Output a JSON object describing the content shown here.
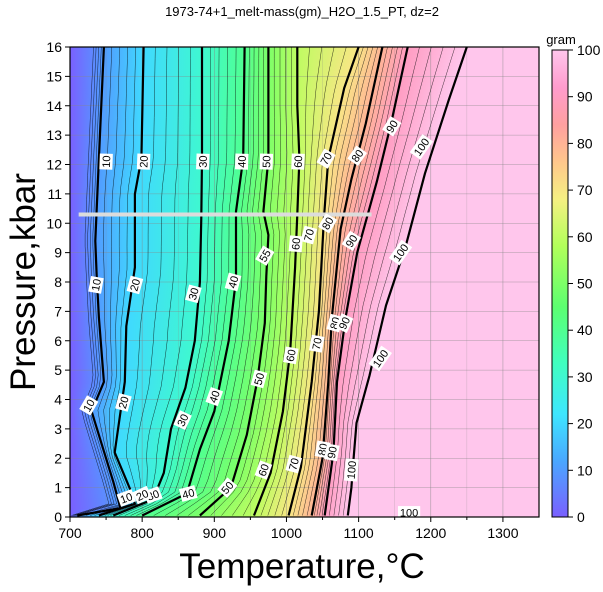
{
  "chart_data": {
    "type": "heatmap",
    "title": "1973-74+1_melt-mass(gm)_H2O_1.5_PT, dz=2",
    "xlabel": "Temperature,°C",
    "ylabel": "Pressure,kbar",
    "xlim": [
      700,
      1350
    ],
    "ylim": [
      0,
      16
    ],
    "x_ticks": [
      700,
      800,
      900,
      1000,
      1100,
      1200,
      1300
    ],
    "y_ticks": [
      0,
      1,
      2,
      3,
      4,
      5,
      6,
      7,
      8,
      9,
      10,
      11,
      12,
      13,
      14,
      15,
      16
    ],
    "colorbar": {
      "label": "gram",
      "range": [
        0,
        100
      ],
      "ticks": [
        0,
        10,
        20,
        30,
        40,
        50,
        60,
        70,
        80,
        90,
        100
      ],
      "colors": [
        {
          "v": 0,
          "c": "#7a60ff"
        },
        {
          "v": 12,
          "c": "#4aa7ff"
        },
        {
          "v": 22,
          "c": "#3ee6ff"
        },
        {
          "v": 33,
          "c": "#40ffbf"
        },
        {
          "v": 45,
          "c": "#5cff70"
        },
        {
          "v": 58,
          "c": "#b2ff5a"
        },
        {
          "v": 68,
          "c": "#f5f082"
        },
        {
          "v": 76,
          "c": "#ffc78c"
        },
        {
          "v": 84,
          "c": "#ffa0a0"
        },
        {
          "v": 92,
          "c": "#ff9ccd"
        },
        {
          "v": 100,
          "c": "#ffc6ec"
        }
      ]
    },
    "grid": true,
    "contour_interval": 2,
    "major_contour_interval": 10,
    "contours": [
      {
        "level": 10,
        "points": [
          [
            710,
            0.05
          ],
          [
            770,
            0.3
          ],
          [
            760,
            1.2
          ],
          [
            730,
            3.6
          ],
          [
            747,
            4.6
          ],
          [
            740,
            6.8
          ],
          [
            737,
            8.2
          ],
          [
            735,
            9.4
          ],
          [
            740,
            12.2
          ],
          [
            747,
            16
          ]
        ]
      },
      {
        "level": 20,
        "points": [
          [
            740,
            0.05
          ],
          [
            790,
            0.45
          ],
          [
            785,
            0.85
          ],
          [
            762,
            2.2
          ],
          [
            776,
            4.6
          ],
          [
            778,
            6.5
          ],
          [
            790,
            8.5
          ],
          [
            790,
            11
          ],
          [
            799,
            12.2
          ],
          [
            802,
            16
          ]
        ]
      },
      {
        "level": 30,
        "points": [
          [
            760,
            0.05
          ],
          [
            815,
            0.6
          ],
          [
            830,
            1.5
          ],
          [
            840,
            3.0
          ],
          [
            860,
            4.4
          ],
          [
            873,
            6.0
          ],
          [
            880,
            8.0
          ],
          [
            882,
            10.2
          ],
          [
            883,
            12.2
          ],
          [
            883,
            16
          ]
        ]
      },
      {
        "level": 40,
        "points": [
          [
            800,
            0.05
          ],
          [
            862,
            0.8
          ],
          [
            880,
            2.3
          ],
          [
            900,
            3.6
          ],
          [
            920,
            6.0
          ],
          [
            930,
            8.1
          ],
          [
            930,
            10.4
          ],
          [
            940,
            12.2
          ],
          [
            942,
            16
          ]
        ]
      },
      {
        "level": 50,
        "points": [
          [
            880,
            0.05
          ],
          [
            923,
            1.0
          ],
          [
            945,
            2.8
          ],
          [
            960,
            4.7
          ],
          [
            970,
            6.6
          ],
          [
            972,
            8.2
          ],
          [
            975,
            9.6
          ],
          [
            968,
            10.4
          ],
          [
            975,
            12.2
          ],
          [
            975,
            16
          ]
        ]
      },
      {
        "level": 60,
        "points": [
          [
            955,
            0.05
          ],
          [
            978,
            1.5
          ],
          [
            995,
            3.6
          ],
          [
            1005,
            5.6
          ],
          [
            1012,
            8.5
          ],
          [
            1015,
            10.3
          ],
          [
            1018,
            12.2
          ],
          [
            1015,
            14
          ],
          [
            1015,
            16
          ]
        ]
      },
      {
        "level": 70,
        "points": [
          [
            1003,
            0.05
          ],
          [
            1020,
            1.7
          ],
          [
            1035,
            4.6
          ],
          [
            1045,
            7.0
          ],
          [
            1052,
            10.2
          ],
          [
            1058,
            12.2
          ],
          [
            1080,
            14.6
          ],
          [
            1100,
            16
          ]
        ]
      },
      {
        "level": 80,
        "points": [
          [
            1035,
            0.05
          ],
          [
            1050,
            2.0
          ],
          [
            1058,
            4.6
          ],
          [
            1063,
            6.8
          ],
          [
            1075,
            9.8
          ],
          [
            1090,
            11.5
          ],
          [
            1110,
            13.4
          ],
          [
            1133,
            16
          ]
        ]
      },
      {
        "level": 90,
        "points": [
          [
            1053,
            0.05
          ],
          [
            1065,
            2.2
          ],
          [
            1070,
            4.6
          ],
          [
            1082,
            6.8
          ],
          [
            1098,
            9.0
          ],
          [
            1125,
            11.4
          ],
          [
            1145,
            13.4
          ],
          [
            1168,
            16
          ]
        ]
      },
      {
        "level": 100,
        "points": [
          [
            1085,
            0.05
          ],
          [
            1090,
            1.0
          ],
          [
            1093,
            2.0
          ],
          [
            1097,
            3.2
          ],
          [
            1115,
            4.8
          ],
          [
            1138,
            7.2
          ],
          [
            1165,
            9.2
          ],
          [
            1192,
            11.7
          ],
          [
            1225,
            14.2
          ],
          [
            1250,
            16
          ]
        ]
      }
    ],
    "contour_labels": [
      {
        "text": "10",
        "x": 750,
        "y": 12.1,
        "angle": 88
      },
      {
        "text": "20",
        "x": 802,
        "y": 12.1,
        "angle": 88
      },
      {
        "text": "30",
        "x": 884,
        "y": 12.1,
        "angle": 88
      },
      {
        "text": "40",
        "x": 938,
        "y": 12.1,
        "angle": 88
      },
      {
        "text": "50",
        "x": 972,
        "y": 12.1,
        "angle": 88
      },
      {
        "text": "60",
        "x": 1016,
        "y": 12.1,
        "angle": 88
      },
      {
        "text": "70",
        "x": 1055,
        "y": 12.2,
        "angle": 60
      },
      {
        "text": "80",
        "x": 1098,
        "y": 12.3,
        "angle": 55
      },
      {
        "text": "90",
        "x": 1146,
        "y": 13.3,
        "angle": 58
      },
      {
        "text": "100",
        "x": 1187,
        "y": 12.6,
        "angle": 55
      },
      {
        "text": "80",
        "x": 1057,
        "y": 10.0,
        "angle": 60
      },
      {
        "text": "70",
        "x": 1031,
        "y": 9.6,
        "angle": 75
      },
      {
        "text": "60",
        "x": 1013,
        "y": 9.3,
        "angle": 85
      },
      {
        "text": "90",
        "x": 1090,
        "y": 9.4,
        "angle": 58
      },
      {
        "text": "100",
        "x": 1158,
        "y": 9.0,
        "angle": 55
      },
      {
        "text": "55",
        "x": 970,
        "y": 8.9,
        "angle": 60
      },
      {
        "text": "10",
        "x": 736,
        "y": 7.9,
        "angle": 80
      },
      {
        "text": "20",
        "x": 790,
        "y": 7.9,
        "angle": 75
      },
      {
        "text": "30",
        "x": 871,
        "y": 7.6,
        "angle": 75
      },
      {
        "text": "40",
        "x": 926,
        "y": 8.0,
        "angle": 75
      },
      {
        "text": "80",
        "x": 1067,
        "y": 6.6,
        "angle": 75
      },
      {
        "text": "70",
        "x": 1042,
        "y": 5.9,
        "angle": 80
      },
      {
        "text": "90",
        "x": 1080,
        "y": 6.6,
        "angle": 65
      },
      {
        "text": "60",
        "x": 1006,
        "y": 5.5,
        "angle": 80
      },
      {
        "text": "100",
        "x": 1130,
        "y": 5.4,
        "angle": 55
      },
      {
        "text": "50",
        "x": 962,
        "y": 4.7,
        "angle": 75
      },
      {
        "text": "40",
        "x": 900,
        "y": 4.1,
        "angle": 70
      },
      {
        "text": "30",
        "x": 856,
        "y": 3.3,
        "angle": 65
      },
      {
        "text": "20",
        "x": 774,
        "y": 3.9,
        "angle": 75
      },
      {
        "text": "10",
        "x": 726,
        "y": 3.8,
        "angle": 60
      },
      {
        "text": "80",
        "x": 1050,
        "y": 2.3,
        "angle": 80
      },
      {
        "text": "90",
        "x": 1063,
        "y": 2.2,
        "angle": 80
      },
      {
        "text": "70",
        "x": 1010,
        "y": 1.8,
        "angle": 75
      },
      {
        "text": "60",
        "x": 968,
        "y": 1.6,
        "angle": 70
      },
      {
        "text": "100",
        "x": 1090,
        "y": 1.6,
        "angle": 85
      },
      {
        "text": "50",
        "x": 918,
        "y": 1.0,
        "angle": 50
      },
      {
        "text": "40",
        "x": 864,
        "y": 0.8,
        "angle": 15
      },
      {
        "text": "30",
        "x": 815,
        "y": 0.75,
        "angle": 20
      },
      {
        "text": "20",
        "x": 800,
        "y": 0.75,
        "angle": 25
      },
      {
        "text": "10",
        "x": 778,
        "y": 0.65,
        "angle": 20
      },
      {
        "text": "100",
        "x": 1170,
        "y": 0.15,
        "angle": 0
      }
    ],
    "highlight_line": {
      "y": 10.3,
      "x": [
        712,
        1118
      ],
      "color": "#dcdcdc"
    }
  }
}
